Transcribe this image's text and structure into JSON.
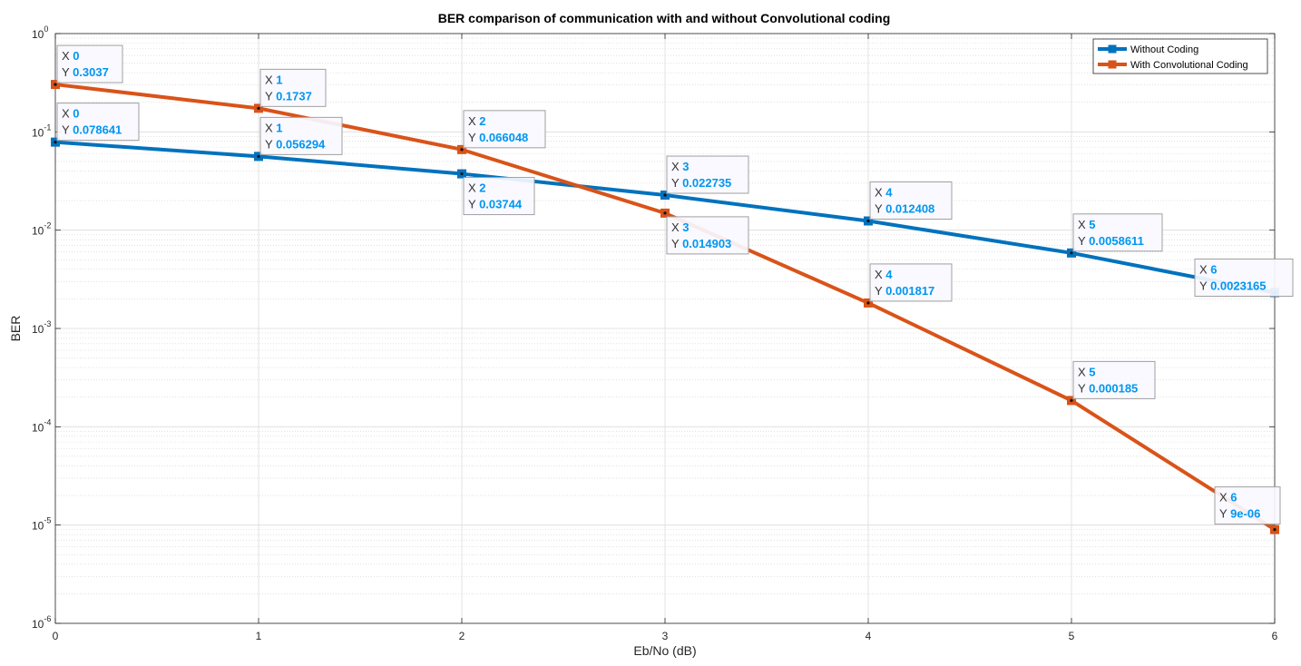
{
  "chart_data": {
    "type": "line",
    "title": "BER comparison of communication with and without Convolutional coding",
    "xlabel": "Eb/No (dB)",
    "ylabel": "BER",
    "yscale": "log",
    "xlim": [
      0,
      6
    ],
    "ylim": [
      1e-06,
      1
    ],
    "grid": true,
    "minor_grid": true,
    "legend_position": "top-right",
    "x": [
      0,
      1,
      2,
      3,
      4,
      5,
      6
    ],
    "x_tick_labels": [
      "0",
      "1",
      "2",
      "3",
      "4",
      "5",
      "6"
    ],
    "y_ticks": [
      {
        "value": 1,
        "base": "10",
        "exp": "0"
      },
      {
        "value": 0.1,
        "base": "10",
        "exp": "-1"
      },
      {
        "value": 0.01,
        "base": "10",
        "exp": "-2"
      },
      {
        "value": 0.001,
        "base": "10",
        "exp": "-3"
      },
      {
        "value": 0.0001,
        "base": "10",
        "exp": "-4"
      },
      {
        "value": 1e-05,
        "base": "10",
        "exp": "-5"
      },
      {
        "value": 1e-06,
        "base": "10",
        "exp": "-6"
      }
    ],
    "series": [
      {
        "name": "Without Coding",
        "color": "#0072bd",
        "values": [
          0.078641,
          0.056294,
          0.03744,
          0.022735,
          0.012408,
          0.0058611,
          0.0023165
        ],
        "tip_labels": [
          {
            "x": "0",
            "y": "0.078641"
          },
          {
            "x": "1",
            "y": "0.056294"
          },
          {
            "x": "2",
            "y": "0.03744"
          },
          {
            "x": "3",
            "y": "0.022735"
          },
          {
            "x": "4",
            "y": "0.012408"
          },
          {
            "x": "5",
            "y": "0.0058611"
          },
          {
            "x": "6",
            "y": "0.0023165"
          }
        ]
      },
      {
        "name": "With Convolutional Coding",
        "color": "#d95319",
        "values": [
          0.3037,
          0.1737,
          0.066048,
          0.014903,
          0.001817,
          0.000185,
          9e-06
        ],
        "tip_labels": [
          {
            "x": "0",
            "y": "0.3037"
          },
          {
            "x": "1",
            "y": "0.1737"
          },
          {
            "x": "2",
            "y": "0.066048"
          },
          {
            "x": "3",
            "y": "0.014903"
          },
          {
            "x": "4",
            "y": "0.001817"
          },
          {
            "x": "5",
            "y": "0.000185"
          },
          {
            "x": "6",
            "y": "9e-06"
          }
        ]
      }
    ],
    "datatip_keys": {
      "x": "X",
      "y": "Y"
    }
  }
}
